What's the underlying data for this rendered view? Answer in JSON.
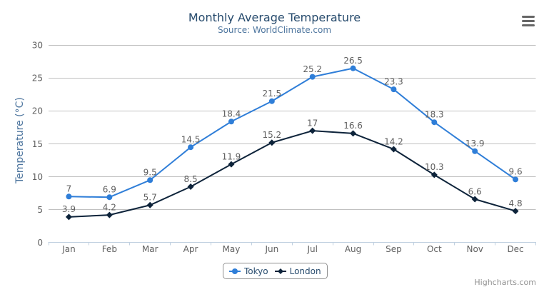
{
  "title": "Monthly Average Temperature",
  "subtitle": "Source: WorldClimate.com",
  "credits": "Highcharts.com",
  "context_menu_icon": "hamburger-menu-icon",
  "colors": {
    "title": "#274b6d",
    "subtitle": "#4d759e",
    "axis_title": "#4d759e",
    "axis_labels": "#606060",
    "data_labels": "#606060",
    "grid_line": "#c0c0c0",
    "axis_line": "#c0d0e0",
    "legend_text": "#274b6d",
    "legend_border": "#909090",
    "credits_text": "#909090",
    "menu_icon": "#666666",
    "background": "#ffffff"
  },
  "chart_data": {
    "type": "line",
    "title": "Monthly Average Temperature",
    "subtitle": "Source: WorldClimate.com",
    "categories": [
      "Jan",
      "Feb",
      "Mar",
      "Apr",
      "May",
      "Jun",
      "Jul",
      "Aug",
      "Sep",
      "Oct",
      "Nov",
      "Dec"
    ],
    "series": [
      {
        "name": "Tokyo",
        "color": "#2f7ed8",
        "marker": "circle",
        "values": [
          7,
          6.9,
          9.5,
          14.5,
          18.4,
          21.5,
          25.2,
          26.5,
          23.3,
          18.3,
          13.9,
          9.6
        ]
      },
      {
        "name": "London",
        "color": "#0d233a",
        "marker": "diamond",
        "values": [
          3.9,
          4.2,
          5.7,
          8.5,
          11.9,
          15.2,
          17,
          16.6,
          14.2,
          10.3,
          6.6,
          4.8
        ]
      }
    ],
    "xlabel": "",
    "ylabel": "Temperature (°C)",
    "ylim": [
      0,
      30
    ],
    "ytick_interval": 5,
    "yticks": [
      0,
      5,
      10,
      15,
      20,
      25,
      30
    ],
    "grid": true,
    "data_labels": true,
    "legend_position": "bottom"
  }
}
